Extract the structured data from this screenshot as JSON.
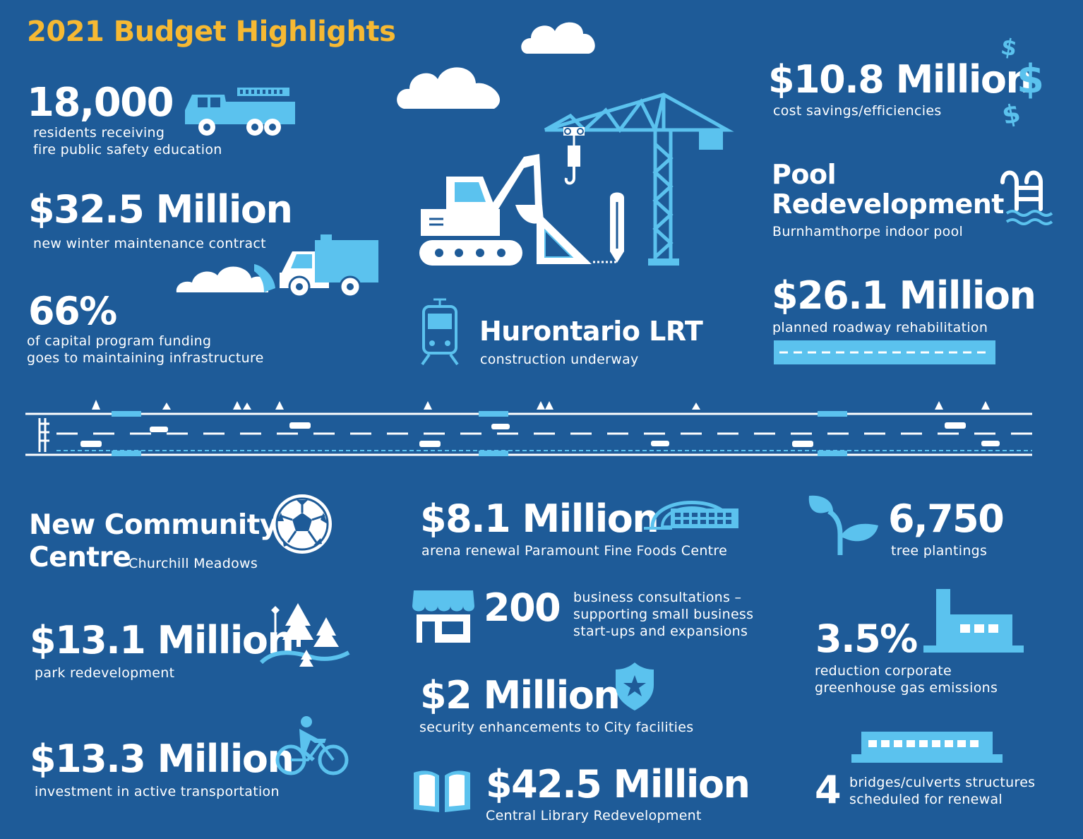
{
  "title": "2021 Budget Highlights",
  "left_top": [
    {
      "value": "18,000",
      "lines": [
        "residents receiving",
        "fire public safety education"
      ]
    },
    {
      "value": "$32.5 Million",
      "lines": [
        "new winter maintenance contract"
      ]
    },
    {
      "value": "66%",
      "lines": [
        "of capital program funding",
        "goes to maintaining infrastructure"
      ]
    }
  ],
  "lrt": {
    "title": "Hurontario LRT",
    "caption": "construction underway"
  },
  "right_top": {
    "savings": {
      "value": "$10.8 Million",
      "caption": "cost savings/efficiencies"
    },
    "pool": {
      "title_line1": "Pool",
      "title_line2": "Redevelopment",
      "caption": "Burnhamthorpe indoor pool"
    },
    "roadway": {
      "value": "$26.1 Million",
      "caption": "planned roadway rehabilitation"
    }
  },
  "bottom_left": {
    "community": {
      "title_line1": "New Community",
      "title_line2": "Centre",
      "caption": "Churchill Meadows"
    },
    "park": {
      "value": "$13.1 Million",
      "caption": "park redevelopment"
    },
    "active": {
      "value": "$13.3 Million",
      "caption": "investment in active transportation"
    }
  },
  "bottom_mid": {
    "arena": {
      "value": "$8.1 Million",
      "caption": "arena renewal Paramount Fine Foods Centre"
    },
    "business": {
      "value": "200",
      "lines": [
        "business consultations –",
        "supporting small business",
        "start-ups and expansions"
      ]
    },
    "security": {
      "value": "$2 Million",
      "caption": "security enhancements to City facilities"
    },
    "library": {
      "value": "$42.5 Million",
      "caption": "Central Library Redevelopment"
    }
  },
  "bottom_right": {
    "trees": {
      "value": "6,750",
      "caption": "tree plantings"
    },
    "emissions": {
      "value": "3.5%",
      "lines": [
        "reduction corporate",
        "greenhouse gas emissions"
      ]
    },
    "bridges": {
      "value": "4",
      "lines": [
        "bridges/culverts structures",
        "scheduled for renewal"
      ]
    }
  },
  "colors": {
    "background": "#1e5b98",
    "accent": "#5bc2ee",
    "title": "#f6b933",
    "white": "#ffffff"
  },
  "icons": [
    "fire-truck-icon",
    "snow-plow-truck-icon",
    "cloud-icon",
    "excavator-icon",
    "crane-icon",
    "set-square-icon",
    "pencil-icon",
    "train-icon",
    "dollar-icon",
    "pool-ladder-icon",
    "road-icon",
    "soccer-ball-icon",
    "park-trees-icon",
    "cyclist-icon",
    "arena-dome-icon",
    "storefront-icon",
    "police-badge-icon",
    "open-book-icon",
    "plant-sprout-icon",
    "factory-icon",
    "bridge-icon"
  ]
}
